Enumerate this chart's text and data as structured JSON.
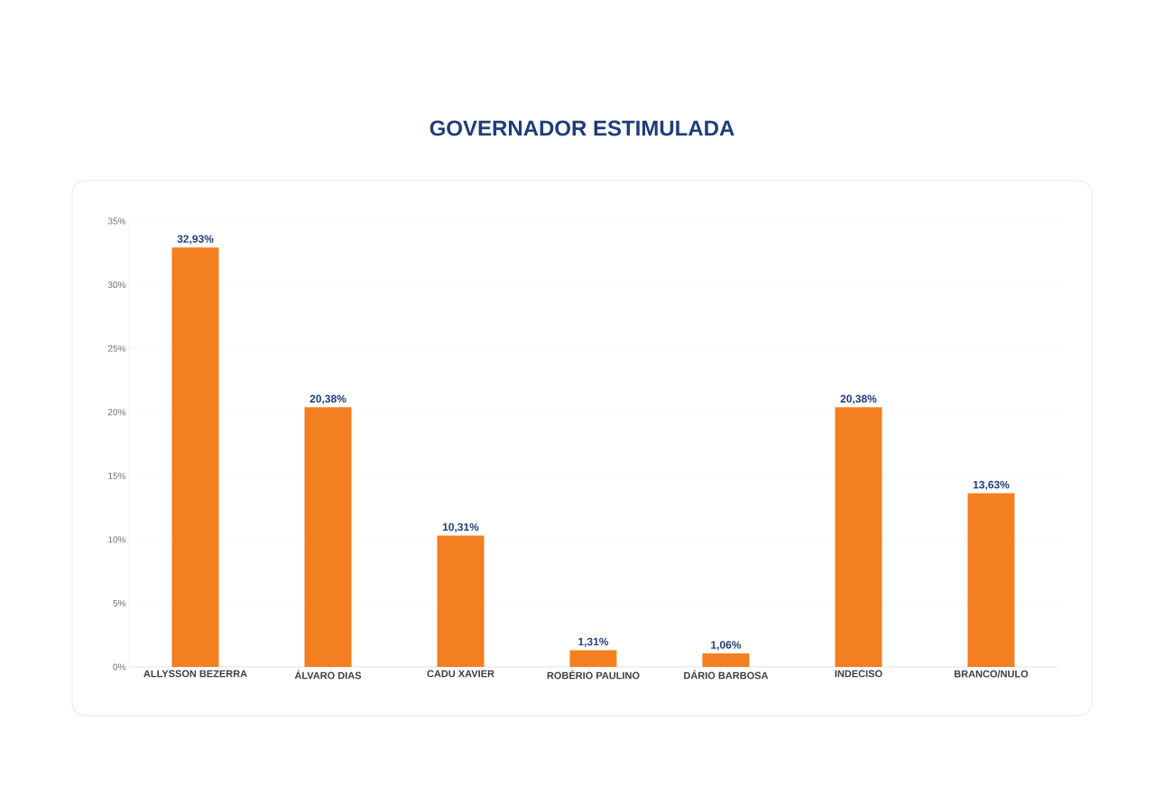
{
  "chart_data": {
    "type": "bar",
    "title": "GOVERNADOR ESTIMULADA",
    "categories": [
      "ALLYSSON BEZERRA",
      "ÁLVARO DIAS",
      "CADU XAVIER",
      "ROBÉRIO PAULINO",
      "DÁRIO BARBOSA",
      "INDECISO",
      "BRANCO/NULO"
    ],
    "values": [
      32.93,
      20.38,
      10.31,
      1.31,
      1.06,
      20.38,
      13.63
    ],
    "value_labels": [
      "32,93%",
      "20,38%",
      "10,31%",
      "1,31%",
      "1,06%",
      "20,38%",
      "13,63%"
    ],
    "color": "#f47f20",
    "ylim": [
      0,
      35
    ],
    "yticks": [
      {
        "value": 0,
        "label": "0%"
      },
      {
        "value": 5,
        "label": "5%"
      },
      {
        "value": 10,
        "label": "10%"
      },
      {
        "value": 15,
        "label": "15%"
      },
      {
        "value": 20,
        "label": "20%"
      },
      {
        "value": 25,
        "label": "25%"
      },
      {
        "value": 30,
        "label": "30%"
      },
      {
        "value": 35,
        "label": "35%"
      }
    ],
    "grid": "y"
  }
}
